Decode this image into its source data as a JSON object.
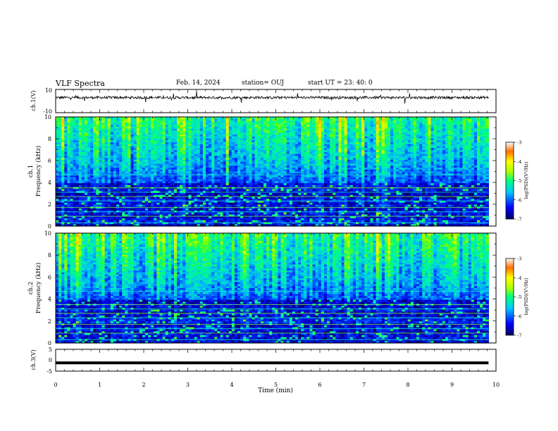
{
  "header": {
    "title": "VLF Spectra",
    "date": "Feb. 14, 2024",
    "station": "station= OUJ",
    "start": "start  UT  =   23: 40: 0"
  },
  "chart_data": [
    {
      "type": "line",
      "panel": "ch1-waveform",
      "ylabel": "ch.1(V)",
      "ylim": [
        -10,
        10
      ],
      "y_ticks": [
        "10",
        "-10"
      ],
      "baseline": 3
    },
    {
      "type": "heatmap",
      "panel": "ch1-spectrogram",
      "ylabel_line1": "ch.1",
      "ylabel_line2": "Frequency  (kHz)",
      "ylim": [
        0,
        10
      ],
      "y_ticks": [
        "0",
        "2",
        "4",
        "6",
        "8",
        "10"
      ],
      "colorbar": {
        "label": "log(PSD)(V²/Hz)",
        "range": [
          -7,
          -3
        ],
        "ticks": [
          "-3",
          "-4",
          "-5",
          "-6",
          "-7"
        ]
      },
      "xlim": [
        0,
        9.83
      ]
    },
    {
      "type": "heatmap",
      "panel": "ch2-spectrogram",
      "ylabel_line1": "ch.2",
      "ylabel_line2": "Frequency  (kHz)",
      "ylim": [
        0,
        10
      ],
      "y_ticks": [
        "0",
        "2",
        "4",
        "6",
        "8",
        "10"
      ],
      "colorbar": {
        "label": "log(PSD)(V²/Hz)",
        "range": [
          -7,
          -3
        ],
        "ticks": [
          "-3",
          "-4",
          "-5",
          "-6",
          "-7"
        ]
      },
      "xlim": [
        0,
        9.83
      ]
    },
    {
      "type": "line",
      "panel": "ch3-waveform",
      "ylabel": "ch.3(V)",
      "ylim": [
        -5,
        5
      ],
      "y_ticks": [
        "5",
        "0",
        "-5"
      ],
      "baseline": -1.2
    }
  ],
  "x_axis": {
    "label": "Time  (min)",
    "xlim": [
      0,
      10
    ],
    "ticks": [
      "0",
      "1",
      "2",
      "3",
      "4",
      "5",
      "6",
      "7",
      "8",
      "9",
      "10"
    ]
  },
  "colors": {
    "spectrum_scale": [
      "#000080",
      "#0000ff",
      "#00c0ff",
      "#00ff80",
      "#c0ff00",
      "#ffff00",
      "#ff8000",
      "#ff0000"
    ]
  }
}
